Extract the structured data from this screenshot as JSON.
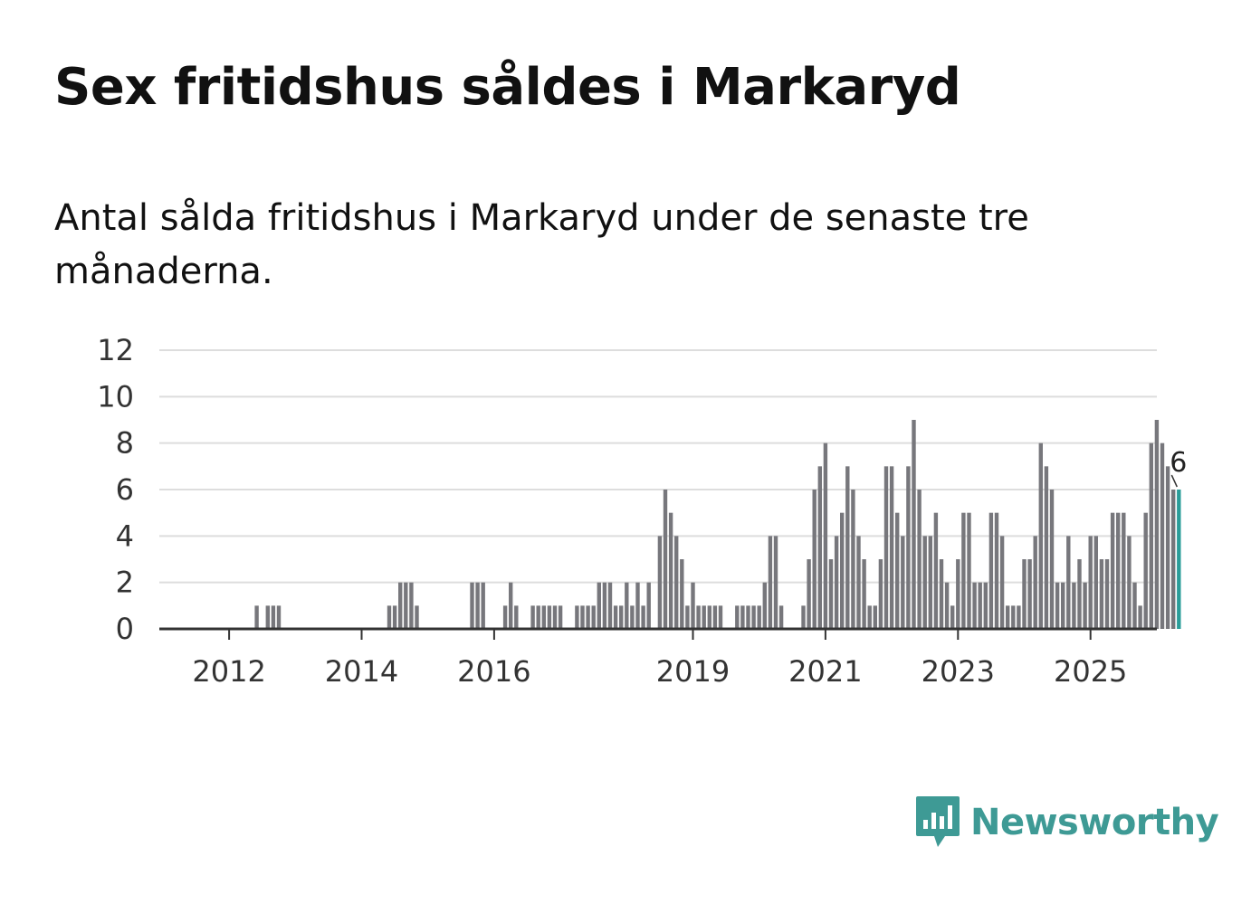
{
  "header": {
    "title": "Sex fritidshus såldes i Markaryd",
    "subtitle": "Antal sålda fritidshus i Markaryd under de senaste tre månaderna."
  },
  "chart_data": {
    "type": "bar",
    "title": "Sex fritidshus såldes i Markaryd",
    "subtitle": "Antal sålda fritidshus i Markaryd under de senaste tre månaderna.",
    "xlabel": "",
    "ylabel": "",
    "ylim": [
      0,
      12
    ],
    "yticks": [
      0,
      2,
      4,
      6,
      8,
      10,
      12
    ],
    "grid": true,
    "start_year": 2011,
    "start_month": 9,
    "x_tick_labels": [
      {
        "label": "2012",
        "index": 4
      },
      {
        "label": "2014",
        "index": 28
      },
      {
        "label": "2016",
        "index": 52
      },
      {
        "label": "2019",
        "index": 88
      },
      {
        "label": "2021",
        "index": 112
      },
      {
        "label": "2023",
        "index": 136
      },
      {
        "label": "2025",
        "index": 160
      }
    ],
    "values": [
      0,
      0,
      0,
      0,
      0,
      0,
      0,
      0,
      0,
      1,
      0,
      1,
      1,
      1,
      0,
      0,
      0,
      0,
      0,
      0,
      0,
      0,
      0,
      0,
      0,
      0,
      0,
      0,
      0,
      0,
      0,
      0,
      0,
      1,
      1,
      2,
      2,
      2,
      1,
      0,
      0,
      0,
      0,
      0,
      0,
      0,
      0,
      0,
      2,
      2,
      2,
      0,
      0,
      0,
      1,
      2,
      1,
      0,
      0,
      1,
      1,
      1,
      1,
      1,
      1,
      0,
      0,
      1,
      1,
      1,
      1,
      2,
      2,
      2,
      1,
      1,
      2,
      1,
      2,
      1,
      2,
      0,
      4,
      6,
      5,
      4,
      3,
      1,
      2,
      1,
      1,
      1,
      1,
      1,
      0,
      0,
      1,
      1,
      1,
      1,
      1,
      2,
      4,
      4,
      1,
      0,
      0,
      0,
      1,
      3,
      6,
      7,
      8,
      3,
      4,
      5,
      7,
      6,
      4,
      3,
      1,
      1,
      3,
      7,
      7,
      5,
      4,
      7,
      9,
      6,
      4,
      4,
      5,
      3,
      2,
      1,
      3,
      5,
      5,
      2,
      2,
      2,
      5,
      5,
      4,
      1,
      1,
      1,
      3,
      3,
      4,
      8,
      7,
      6,
      2,
      2,
      4,
      2,
      3,
      2,
      4,
      4,
      3,
      3,
      5,
      5,
      5,
      4,
      2,
      1,
      5,
      8,
      9,
      8,
      7,
      6,
      6
    ],
    "highlight_last": true,
    "last_value_label": "6",
    "bar_color": "#77777c",
    "highlight_color": "#2a9d99",
    "grid_color": "#dddddd",
    "axis_color": "#333333"
  },
  "branding": {
    "logo_text": "Newsworthy",
    "logo_color": "#3e9a95"
  }
}
